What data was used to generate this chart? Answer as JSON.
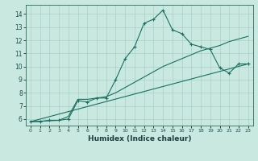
{
  "title": "",
  "xlabel": "Humidex (Indice chaleur)",
  "ylabel": "",
  "bg_color": "#c8e8e0",
  "grid_color": "#a8d0c8",
  "line_color": "#1a7060",
  "xlim": [
    -0.5,
    23.5
  ],
  "ylim": [
    5.5,
    14.7
  ],
  "xticks": [
    0,
    1,
    2,
    3,
    4,
    5,
    6,
    7,
    8,
    9,
    10,
    11,
    12,
    13,
    14,
    15,
    16,
    17,
    18,
    19,
    20,
    21,
    22,
    23
  ],
  "yticks": [
    6,
    7,
    8,
    9,
    10,
    11,
    12,
    13,
    14
  ],
  "line1_x": [
    0,
    1,
    2,
    3,
    4,
    5,
    6,
    7,
    8,
    9,
    10,
    11,
    12,
    13,
    14,
    15,
    16,
    17,
    18,
    19,
    20,
    21,
    22,
    23
  ],
  "line1_y": [
    5.8,
    5.8,
    5.9,
    5.9,
    6.0,
    7.4,
    7.3,
    7.6,
    7.6,
    9.0,
    10.6,
    11.5,
    13.3,
    13.6,
    14.3,
    12.8,
    12.5,
    11.7,
    11.5,
    11.3,
    9.9,
    9.5,
    10.2,
    10.2
  ],
  "line2_x": [
    0,
    3,
    4,
    5,
    6,
    7,
    8,
    9,
    10,
    11,
    12,
    13,
    14,
    15,
    16,
    17,
    18,
    19,
    20,
    21,
    22,
    23
  ],
  "line2_y": [
    5.8,
    5.9,
    6.2,
    7.5,
    7.5,
    7.6,
    7.7,
    8.0,
    8.4,
    8.8,
    9.2,
    9.6,
    10.0,
    10.3,
    10.6,
    10.9,
    11.2,
    11.4,
    11.6,
    11.9,
    12.1,
    12.3
  ],
  "line3_x": [
    0,
    23
  ],
  "line3_y": [
    5.8,
    10.2
  ]
}
